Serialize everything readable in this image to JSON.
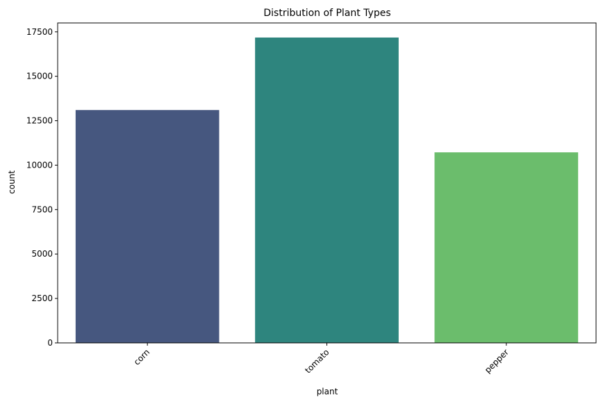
{
  "chart_data": {
    "type": "bar",
    "title": "Distribution of Plant Types",
    "xlabel": "plant",
    "ylabel": "count",
    "categories": [
      "corn",
      "tomato",
      "pepper"
    ],
    "values": [
      13100,
      17180,
      10720
    ],
    "colors": [
      "#46577f",
      "#2e857e",
      "#6bbd6c"
    ],
    "ylim": [
      0,
      18000
    ],
    "yticks": [
      0,
      2500,
      5000,
      7500,
      10000,
      12500,
      15000,
      17500
    ],
    "xtick_rotation": 45,
    "grid": false,
    "legend": "none"
  }
}
